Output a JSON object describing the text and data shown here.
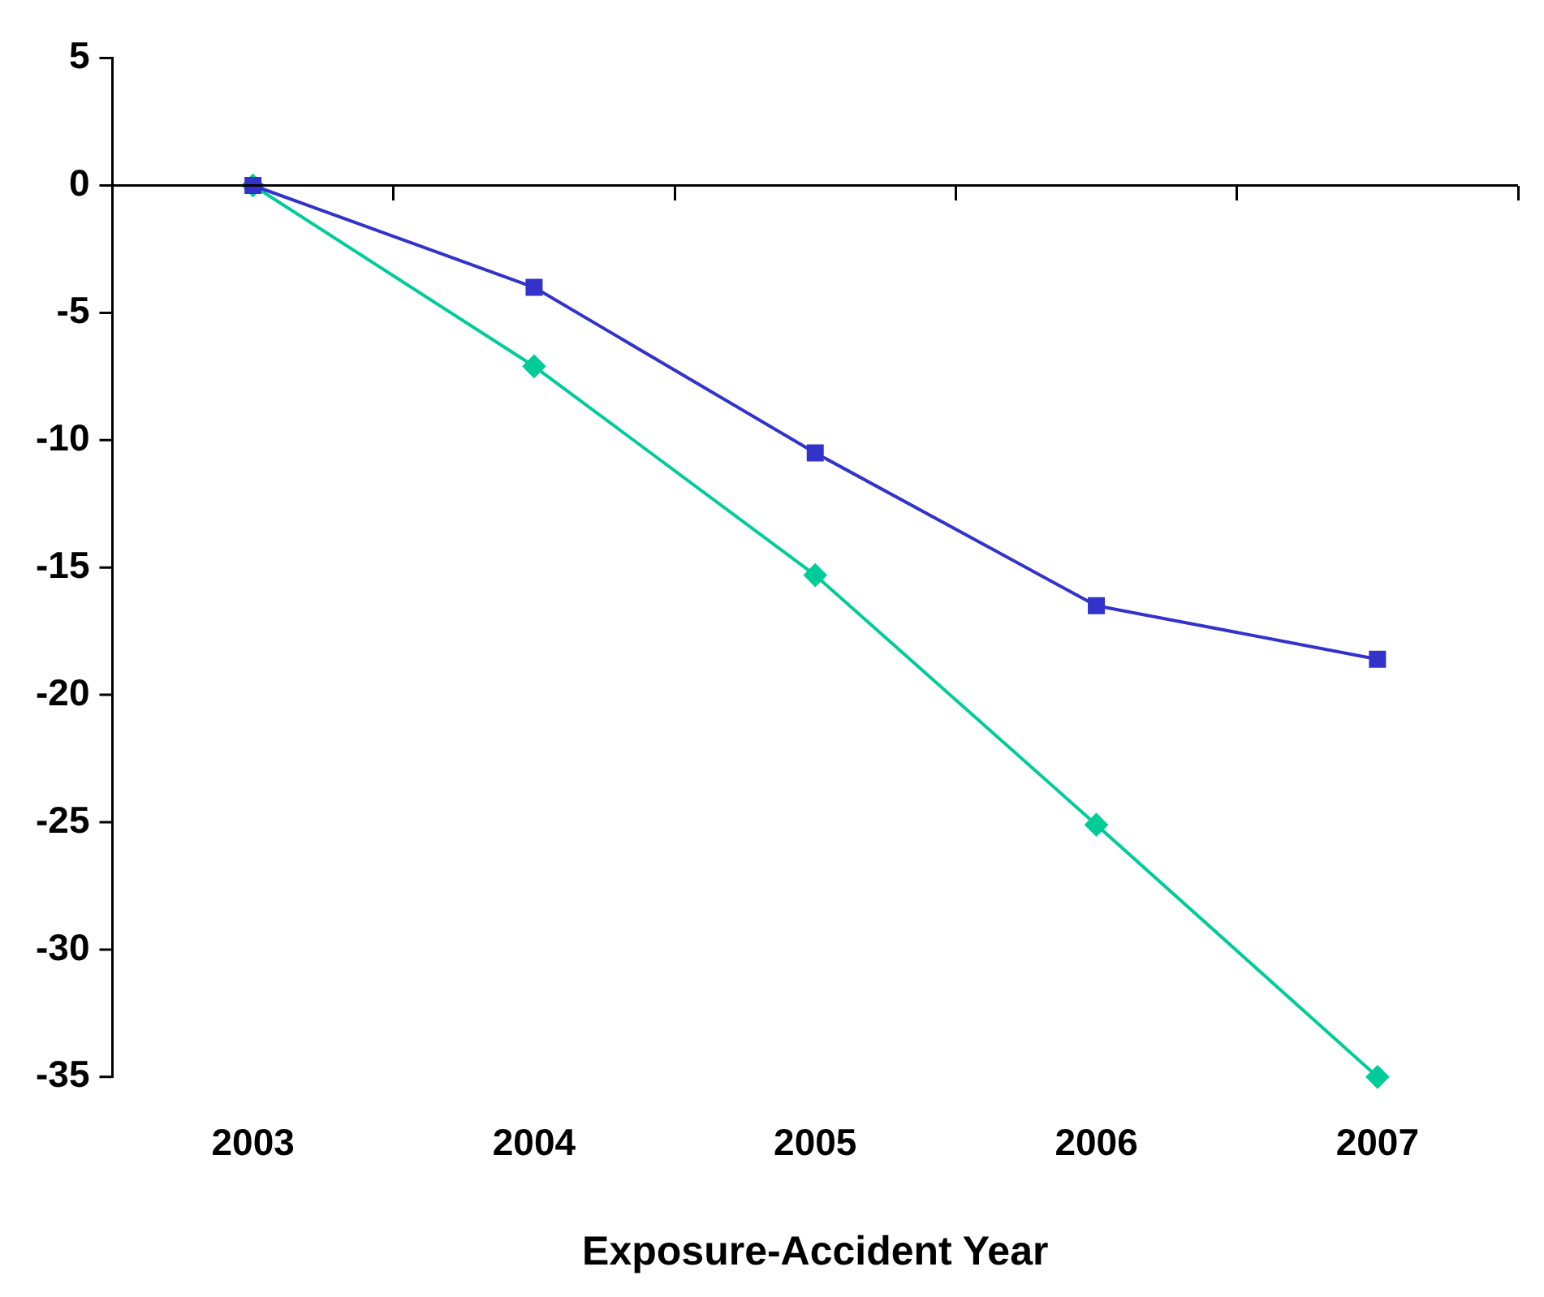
{
  "chart_data": {
    "type": "line",
    "xlabel": "Exposure-Accident Year",
    "categories": [
      "2003",
      "2004",
      "2005",
      "2006",
      "2007"
    ],
    "series": [
      {
        "color": "#3333cc",
        "marker": "square",
        "values": [
          0,
          -4,
          -10.5,
          -16.5,
          -18.6
        ]
      },
      {
        "color": "#00cc99",
        "marker": "diamond",
        "values": [
          0,
          -7.1,
          -15.3,
          -25.1,
          -35
        ]
      }
    ],
    "ylim": [
      -35,
      5
    ],
    "yticks": [
      5,
      0,
      -5,
      -10,
      -15,
      -20,
      -25,
      -30,
      -35
    ],
    "ref_lines": [
      {
        "axis": "y",
        "value": 0,
        "color": "#000000",
        "line_style": "solid"
      }
    ],
    "grid": false,
    "legend": false,
    "line_style": "solid"
  }
}
